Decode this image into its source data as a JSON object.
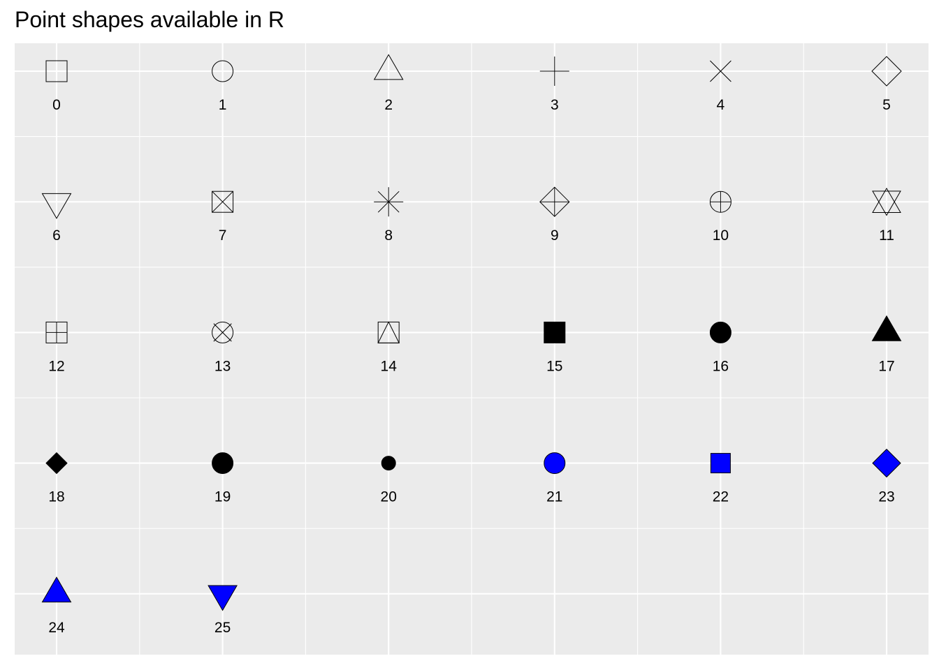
{
  "chart_data": {
    "type": "scatter",
    "title": "Point shapes available in R",
    "xlabel": "",
    "ylabel": "",
    "grid": true,
    "legend": "none",
    "columns": 6,
    "rows": 5,
    "fill_color": "#0000ff",
    "stroke_color": "#000000",
    "panel_background": "#ebebeb",
    "gridline_color": "#ffffff",
    "points": [
      {
        "shape": 0,
        "label": "0",
        "column": 1,
        "row": 1
      },
      {
        "shape": 1,
        "label": "1",
        "column": 2,
        "row": 1
      },
      {
        "shape": 2,
        "label": "2",
        "column": 3,
        "row": 1
      },
      {
        "shape": 3,
        "label": "3",
        "column": 4,
        "row": 1
      },
      {
        "shape": 4,
        "label": "4",
        "column": 5,
        "row": 1
      },
      {
        "shape": 5,
        "label": "5",
        "column": 6,
        "row": 1
      },
      {
        "shape": 6,
        "label": "6",
        "column": 1,
        "row": 2
      },
      {
        "shape": 7,
        "label": "7",
        "column": 2,
        "row": 2
      },
      {
        "shape": 8,
        "label": "8",
        "column": 3,
        "row": 2
      },
      {
        "shape": 9,
        "label": "9",
        "column": 4,
        "row": 2
      },
      {
        "shape": 10,
        "label": "10",
        "column": 5,
        "row": 2
      },
      {
        "shape": 11,
        "label": "11",
        "column": 6,
        "row": 2
      },
      {
        "shape": 12,
        "label": "12",
        "column": 1,
        "row": 3
      },
      {
        "shape": 13,
        "label": "13",
        "column": 2,
        "row": 3
      },
      {
        "shape": 14,
        "label": "14",
        "column": 3,
        "row": 3
      },
      {
        "shape": 15,
        "label": "15",
        "column": 4,
        "row": 3
      },
      {
        "shape": 16,
        "label": "16",
        "column": 5,
        "row": 3
      },
      {
        "shape": 17,
        "label": "17",
        "column": 6,
        "row": 3
      },
      {
        "shape": 18,
        "label": "18",
        "column": 1,
        "row": 4
      },
      {
        "shape": 19,
        "label": "19",
        "column": 2,
        "row": 4
      },
      {
        "shape": 20,
        "label": "20",
        "column": 3,
        "row": 4
      },
      {
        "shape": 21,
        "label": "21",
        "column": 4,
        "row": 4
      },
      {
        "shape": 22,
        "label": "22",
        "column": 5,
        "row": 4
      },
      {
        "shape": 23,
        "label": "23",
        "column": 6,
        "row": 4
      },
      {
        "shape": 24,
        "label": "24",
        "column": 1,
        "row": 5
      },
      {
        "shape": 25,
        "label": "25",
        "column": 2,
        "row": 5
      }
    ]
  }
}
